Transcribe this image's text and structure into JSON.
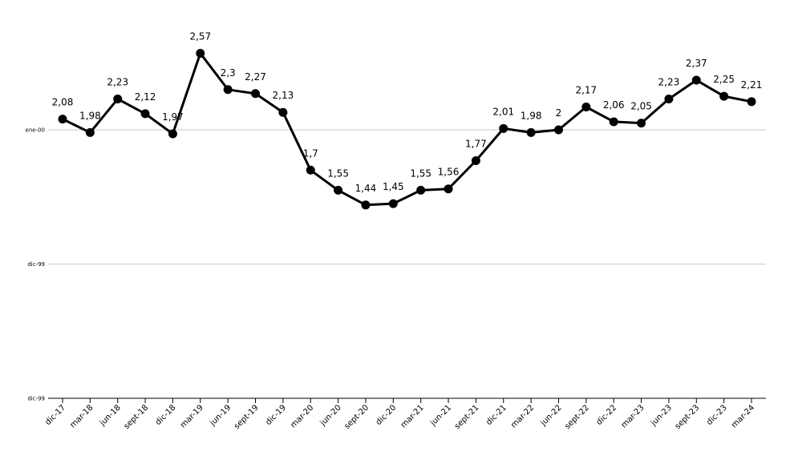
{
  "chart_data": {
    "type": "line",
    "title": "",
    "xlabel": "",
    "ylabel": "",
    "categories": [
      "dic-17",
      "mar-18",
      "jun-18",
      "sept-18",
      "dic-18",
      "mar-19",
      "jun-19",
      "sept-19",
      "dic-19",
      "mar-20",
      "jun-20",
      "sept-20",
      "dic-20",
      "mar-21",
      "jun-21",
      "sept-21",
      "dic-21",
      "mar-22",
      "jun-22",
      "sept-22",
      "dic-22",
      "mar-23",
      "jun-23",
      "sept-23",
      "dic-23",
      "mar-24"
    ],
    "series": [
      {
        "values": [
          2.08,
          1.98,
          2.23,
          2.12,
          1.97,
          2.57,
          2.3,
          2.27,
          2.13,
          1.7,
          1.55,
          1.44,
          1.45,
          1.55,
          1.56,
          1.77,
          2.01,
          1.98,
          2,
          2.17,
          2.06,
          2.05,
          2.23,
          2.37,
          2.25,
          2.21
        ],
        "labels": [
          "2,08",
          "1,98",
          "2,23",
          "2,12",
          "1,97",
          "2,57",
          "2,3",
          "2,27",
          "2,13",
          "1,7",
          "1,55",
          "1,44",
          "1,45",
          "1,55",
          "1,56",
          "1,77",
          "2,01",
          "1,98",
          "2",
          "2,17",
          "2,06",
          "2,05",
          "2,23",
          "2,37",
          "2,25",
          "2,21"
        ]
      }
    ],
    "ylim": [
      0,
      3
    ],
    "yticks": [
      {
        "value": 0,
        "label": "dic-99"
      },
      {
        "value": 1,
        "label": "dic-99"
      },
      {
        "value": 2,
        "label": "ene-00"
      }
    ],
    "grid": true,
    "colors": {
      "line": "#000000",
      "marker": "#000000",
      "grid": "#c8c8c8"
    }
  }
}
